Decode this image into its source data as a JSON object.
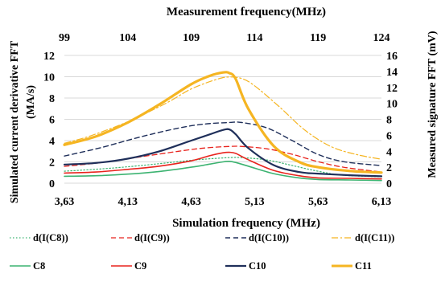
{
  "chart_data": {
    "type": "line",
    "title": "",
    "top_axis": {
      "label": "Measurement frequency(MHz)",
      "range": [
        99,
        124
      ],
      "ticks": [
        "99",
        "104",
        "109",
        "114",
        "119",
        "124"
      ]
    },
    "x_axis": {
      "label": "Simulation frequency (MHz)",
      "range": [
        3.63,
        6.13
      ],
      "ticks": [
        "3,63",
        "4,13",
        "4,63",
        "5,13",
        "5,63",
        "6,13"
      ]
    },
    "y_left": {
      "label": "Simulated current derivative FFT",
      "unit": "(MA/s)",
      "range": [
        0,
        12
      ],
      "ticks": [
        "0",
        "2",
        "4",
        "6",
        "8",
        "10",
        "12"
      ]
    },
    "y_right": {
      "label": "Measured signature  FFT (mV)",
      "range": [
        0,
        16
      ],
      "ticks": [
        "0",
        "2",
        "4",
        "6",
        "8",
        "10",
        "12",
        "14",
        "16"
      ]
    },
    "grid": "horizontal",
    "legend_position": "bottom",
    "series": [
      {
        "name": "d(I(C8))",
        "axis": "right",
        "style": "dotted",
        "color": "#3cb371",
        "width": 1.2,
        "x": [
          99,
          102,
          105,
          108,
          110,
          112,
          113,
          115,
          117,
          119,
          121,
          124
        ],
        "y": [
          1.5,
          1.8,
          2.2,
          2.7,
          3.0,
          3.2,
          3.2,
          2.9,
          2.2,
          1.5,
          1.0,
          0.8
        ]
      },
      {
        "name": "d(I(C9))",
        "axis": "right",
        "style": "dashed",
        "color": "#e8231d",
        "width": 1.3,
        "x": [
          99,
          102,
          105,
          108,
          110,
          112,
          113,
          115,
          117,
          119,
          121,
          124
        ],
        "y": [
          2.1,
          2.6,
          3.3,
          4.0,
          4.4,
          4.6,
          4.6,
          4.3,
          3.6,
          2.7,
          2.0,
          1.4
        ]
      },
      {
        "name": "d(I(C10))",
        "axis": "right",
        "style": "dashed",
        "color": "#1f2f5a",
        "width": 1.4,
        "x": [
          99,
          102,
          105,
          108,
          110,
          112,
          113,
          115,
          117,
          119,
          121,
          124
        ],
        "y": [
          3.4,
          4.5,
          5.8,
          6.9,
          7.4,
          7.6,
          7.6,
          6.9,
          5.3,
          3.6,
          2.7,
          2.2
        ]
      },
      {
        "name": "d(I(C11))",
        "axis": "right",
        "style": "dashdot",
        "color": "#f5b522",
        "width": 1.2,
        "x": [
          99,
          101,
          104,
          107,
          109,
          111,
          112,
          113,
          114,
          116,
          118,
          120,
          122,
          124
        ],
        "y": [
          5.0,
          5.9,
          7.7,
          10.0,
          11.8,
          13.0,
          13.3,
          13.1,
          12.2,
          9.5,
          6.6,
          4.6,
          3.6,
          3.0
        ]
      },
      {
        "name": "C8",
        "axis": "left",
        "style": "solid",
        "color": "#3cb371",
        "width": 1.6,
        "x": [
          3.63,
          3.88,
          4.13,
          4.38,
          4.63,
          4.78,
          4.88,
          4.93,
          4.98,
          5.08,
          5.28,
          5.48,
          5.63,
          5.88,
          6.13
        ],
        "y": [
          0.65,
          0.7,
          0.85,
          1.1,
          1.5,
          1.8,
          2.0,
          2.05,
          1.95,
          1.6,
          0.9,
          0.5,
          0.35,
          0.3,
          0.25
        ]
      },
      {
        "name": "C9",
        "axis": "left",
        "style": "solid",
        "color": "#e8231d",
        "width": 1.6,
        "x": [
          3.63,
          3.88,
          4.13,
          4.38,
          4.63,
          4.78,
          4.88,
          4.93,
          4.98,
          5.08,
          5.28,
          5.48,
          5.63,
          5.88,
          6.13
        ],
        "y": [
          0.95,
          1.05,
          1.3,
          1.6,
          2.1,
          2.6,
          2.85,
          2.9,
          2.8,
          2.2,
          1.2,
          0.7,
          0.5,
          0.45,
          0.4
        ]
      },
      {
        "name": "C10",
        "axis": "left",
        "style": "solid",
        "color": "#1f2f5a",
        "width": 2.2,
        "x": [
          3.63,
          3.88,
          4.13,
          4.38,
          4.63,
          4.78,
          4.88,
          4.93,
          4.98,
          5.08,
          5.28,
          5.48,
          5.63,
          5.88,
          6.13
        ],
        "y": [
          1.75,
          1.9,
          2.3,
          3.0,
          4.0,
          4.6,
          5.0,
          5.05,
          4.6,
          3.3,
          1.7,
          1.05,
          0.9,
          0.75,
          0.65
        ]
      },
      {
        "name": "C11",
        "axis": "left",
        "style": "solid",
        "color": "#f5b522",
        "width": 3.2,
        "x": [
          3.63,
          3.88,
          4.13,
          4.38,
          4.63,
          4.78,
          4.88,
          4.93,
          4.98,
          5.08,
          5.28,
          5.48,
          5.63,
          5.88,
          6.13
        ],
        "y": [
          3.6,
          4.4,
          5.7,
          7.4,
          9.3,
          10.1,
          10.4,
          10.35,
          9.8,
          7.0,
          3.5,
          2.0,
          1.5,
          1.15,
          1.0
        ]
      }
    ],
    "legend": [
      [
        "d(I(C8))",
        "d(I(C9))",
        "d(I(C10))",
        "d(I(C11))"
      ],
      [
        "C8",
        "C9",
        "C10",
        "C11"
      ]
    ]
  }
}
